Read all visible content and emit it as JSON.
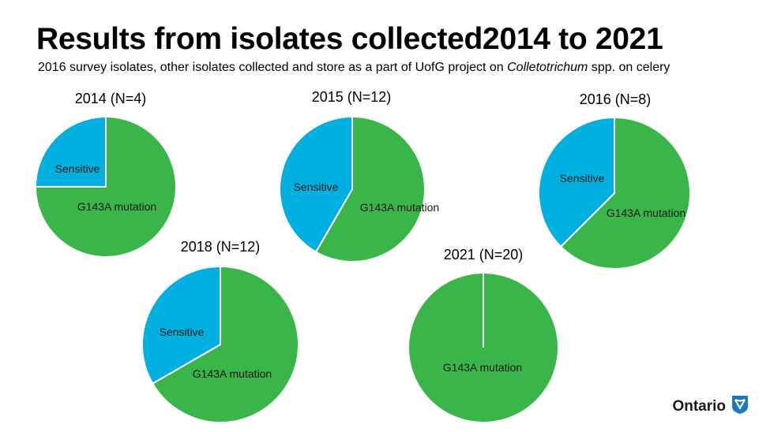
{
  "header": {
    "title": "Results from isolates collected2014 to 2021",
    "subtitle_pre": "2016 survey isolates, other isolates collected and store as a part of UofG project on ",
    "subtitle_em": "Colletotrichum",
    "subtitle_post": " spp. on celery"
  },
  "colors": {
    "sensitive": "#00b0e0",
    "mutation": "#39b54a"
  },
  "chart_data": [
    {
      "type": "pie",
      "title": "2014 (N=4)",
      "categories": [
        "Sensitive",
        "G143A mutation"
      ],
      "values": [
        1,
        3
      ]
    },
    {
      "type": "pie",
      "title": "2015 (N=12)",
      "categories": [
        "Sensitive",
        "G143A mutation"
      ],
      "values": [
        5,
        7
      ]
    },
    {
      "type": "pie",
      "title": "2016 (N=8)",
      "categories": [
        "Sensitive",
        "G143A mutation"
      ],
      "values": [
        3,
        5
      ]
    },
    {
      "type": "pie",
      "title": "2018 (N=12)",
      "categories": [
        "Sensitive",
        "G143A mutation"
      ],
      "values": [
        4,
        8
      ]
    },
    {
      "type": "pie",
      "title": "2021 (N=20)",
      "categories": [
        "Sensitive",
        "G143A mutation"
      ],
      "values": [
        0,
        20
      ]
    }
  ],
  "logo": {
    "text": "Ontario",
    "icon": "trillium-icon"
  }
}
